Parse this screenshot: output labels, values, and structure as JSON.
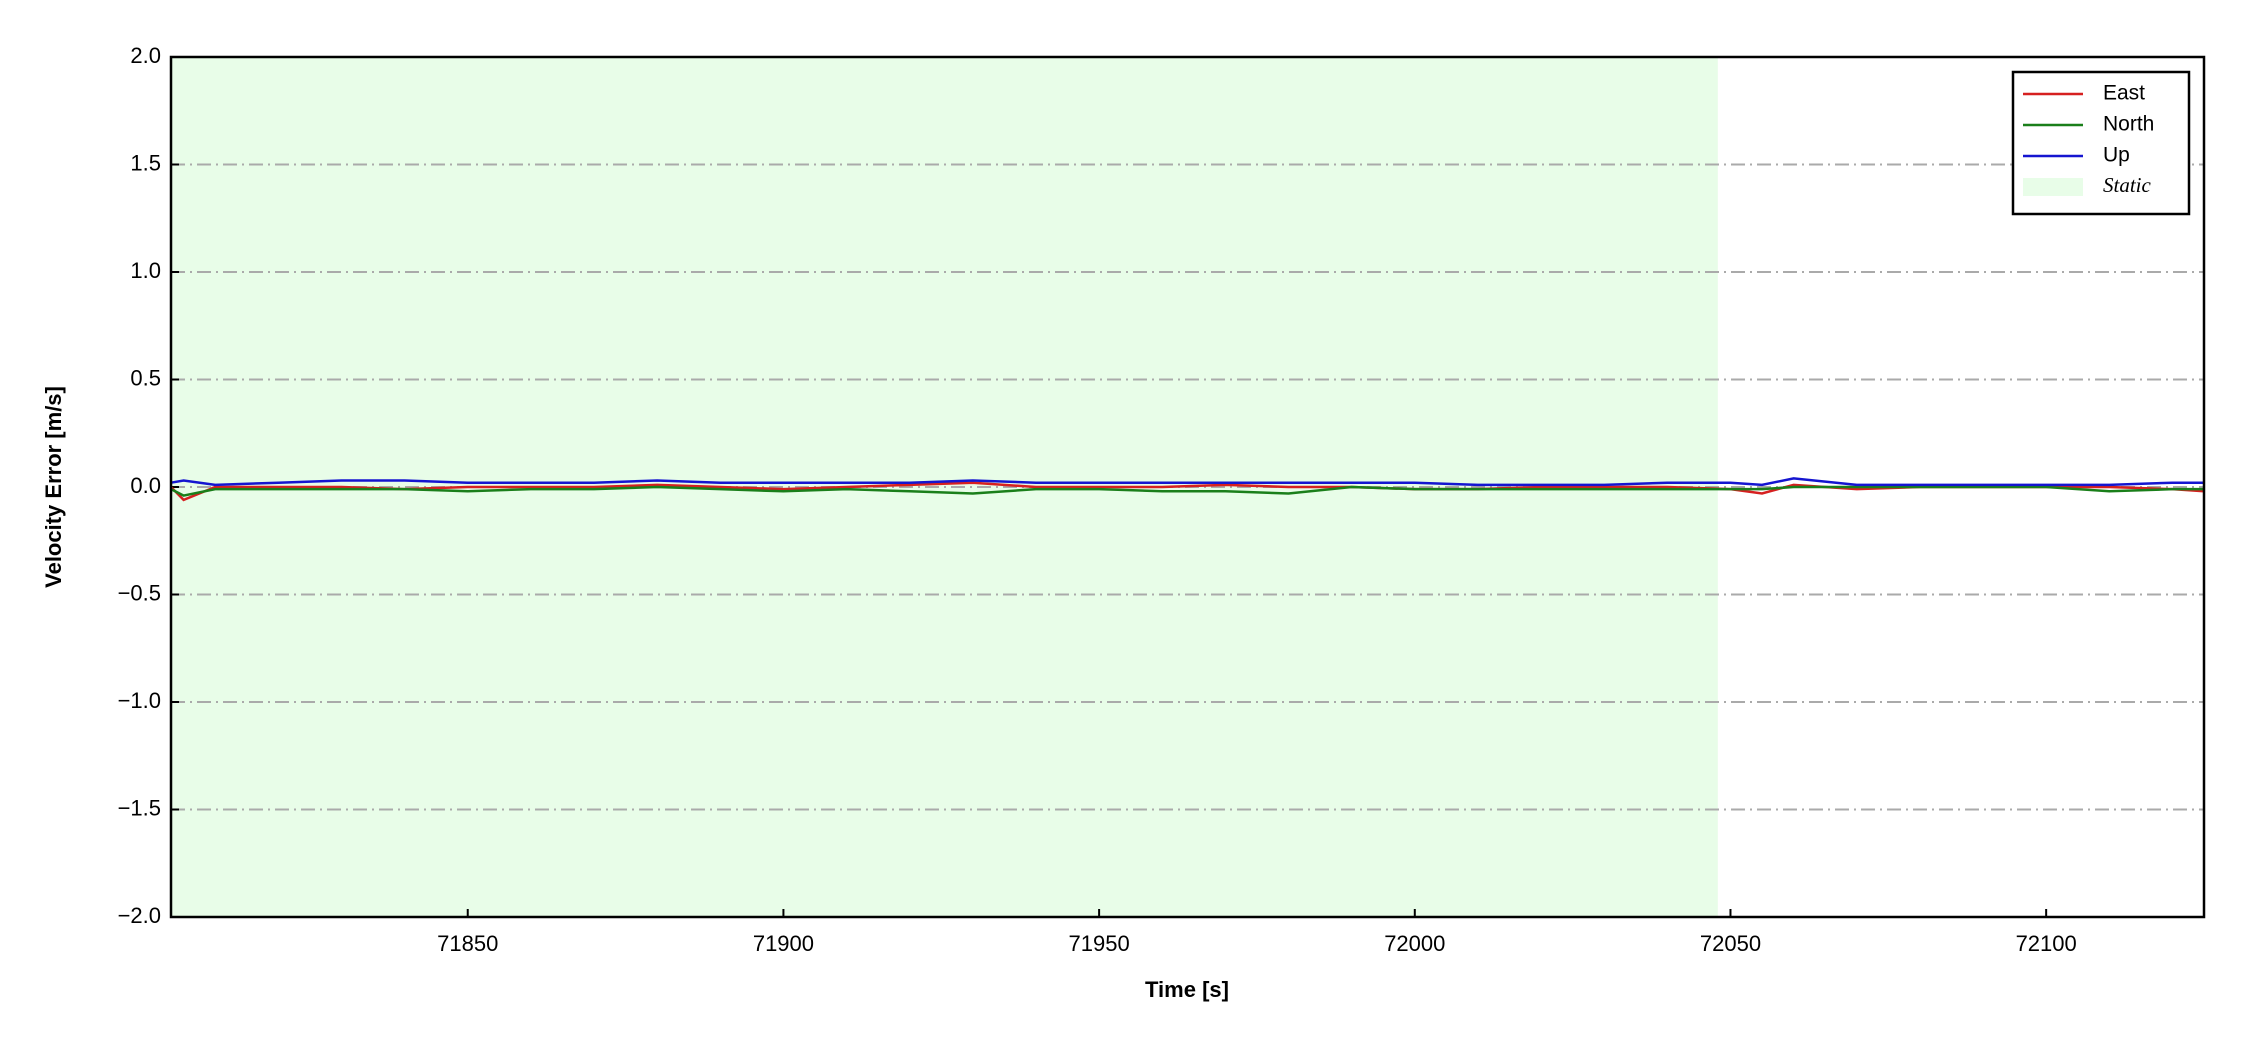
{
  "chart_data": {
    "type": "line",
    "xlabel": "Time [s]",
    "ylabel": "Velocity Error [m/s]",
    "x": [
      71803,
      71805,
      71810,
      71820,
      71830,
      71840,
      71850,
      71860,
      71870,
      71880,
      71890,
      71900,
      71910,
      71920,
      71930,
      71940,
      71950,
      71960,
      71970,
      71980,
      71990,
      72000,
      72010,
      72020,
      72030,
      72040,
      72050,
      72055,
      72060,
      72070,
      72080,
      72090,
      72100,
      72110,
      72120,
      72125
    ],
    "series": [
      {
        "name": "East",
        "color": "#d62020",
        "values": [
          0.0,
          -0.06,
          0.0,
          0.0,
          0.0,
          -0.01,
          0.0,
          0.0,
          0.0,
          0.01,
          0.0,
          -0.01,
          0.0,
          0.01,
          0.02,
          0.0,
          0.0,
          0.0,
          0.01,
          0.0,
          0.0,
          -0.01,
          -0.01,
          0.0,
          0.0,
          0.0,
          -0.01,
          -0.03,
          0.01,
          -0.01,
          0.0,
          0.0,
          0.0,
          0.0,
          -0.01,
          -0.02
        ]
      },
      {
        "name": "North",
        "color": "#1a7f1a",
        "values": [
          -0.01,
          -0.04,
          -0.01,
          -0.01,
          -0.01,
          -0.01,
          -0.02,
          -0.01,
          -0.01,
          0.0,
          -0.01,
          -0.02,
          -0.01,
          -0.02,
          -0.03,
          -0.01,
          -0.01,
          -0.02,
          -0.02,
          -0.03,
          0.0,
          -0.01,
          -0.01,
          -0.01,
          -0.01,
          -0.01,
          -0.01,
          -0.01,
          0.0,
          0.0,
          0.0,
          0.0,
          0.0,
          -0.02,
          -0.01,
          -0.01
        ]
      },
      {
        "name": "Up",
        "color": "#1515d0",
        "values": [
          0.02,
          0.03,
          0.01,
          0.02,
          0.03,
          0.03,
          0.02,
          0.02,
          0.02,
          0.03,
          0.02,
          0.02,
          0.02,
          0.02,
          0.03,
          0.02,
          0.02,
          0.02,
          0.02,
          0.02,
          0.02,
          0.02,
          0.01,
          0.01,
          0.01,
          0.02,
          0.02,
          0.01,
          0.04,
          0.01,
          0.01,
          0.01,
          0.01,
          0.01,
          0.02,
          0.02
        ]
      }
    ],
    "shaded_regions": [
      {
        "name": "Static",
        "start": 71803,
        "end": 72048,
        "color": "#e8fde8"
      }
    ],
    "xlim": [
      71803,
      72125
    ],
    "xticks": [
      71850,
      71900,
      71950,
      72000,
      72050,
      72100
    ],
    "ylim": [
      -2,
      2
    ],
    "yticks": [
      {
        "value": -2,
        "label": "−2.0"
      },
      {
        "value": -1.5,
        "label": "−1.5"
      },
      {
        "value": -1,
        "label": "−1.0"
      },
      {
        "value": -0.5,
        "label": "−0.5"
      },
      {
        "value": 0,
        "label": "0.0"
      },
      {
        "value": 0.5,
        "label": "0.5"
      },
      {
        "value": 1,
        "label": "1.0"
      },
      {
        "value": 1.5,
        "label": "1.5"
      },
      {
        "value": 2,
        "label": "2.0"
      }
    ],
    "grid": true,
    "legend": "upper right"
  }
}
